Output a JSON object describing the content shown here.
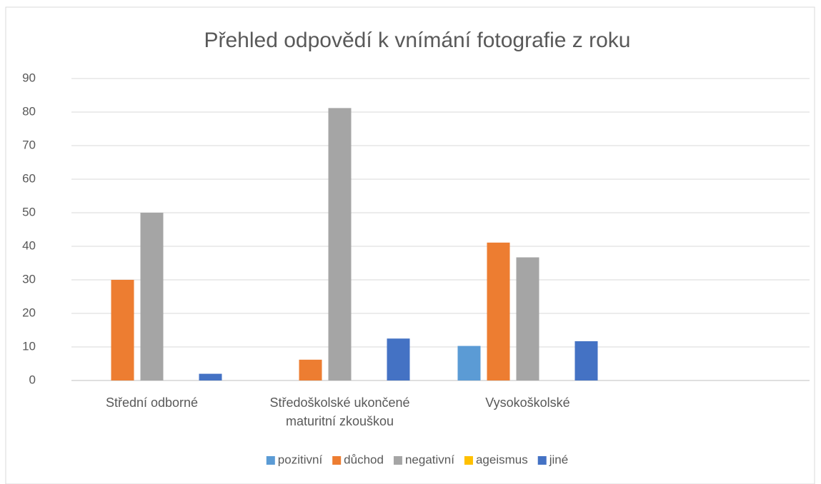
{
  "chart_data": {
    "type": "bar",
    "title": "Přehled  odpovědí k vnímání fotografie z roku",
    "categories": [
      "Střední odborné",
      "Středoškolské ukončené maturitní zkouškou",
      "Vysokoškolské",
      null
    ],
    "series": [
      {
        "name": "pozitivní",
        "color": "#5b9bd5",
        "values": [
          0,
          0,
          10.3,
          null
        ]
      },
      {
        "name": "důchod",
        "color": "#ed7d31",
        "values": [
          30,
          6.2,
          41.1,
          null
        ]
      },
      {
        "name": "negativní",
        "color": "#a5a5a5",
        "values": [
          50,
          81.2,
          36.7,
          null
        ]
      },
      {
        "name": "ageismus",
        "color": "#ffc000",
        "values": [
          0,
          0,
          0,
          null
        ]
      },
      {
        "name": "jiné",
        "color": "#4472c4",
        "values": [
          2,
          12.5,
          11.7,
          null
        ]
      }
    ],
    "ylim": [
      0,
      90
    ],
    "yticks": [
      0,
      10,
      20,
      30,
      40,
      50,
      60,
      70,
      80,
      90
    ],
    "grid": true,
    "legend": "bottom"
  }
}
